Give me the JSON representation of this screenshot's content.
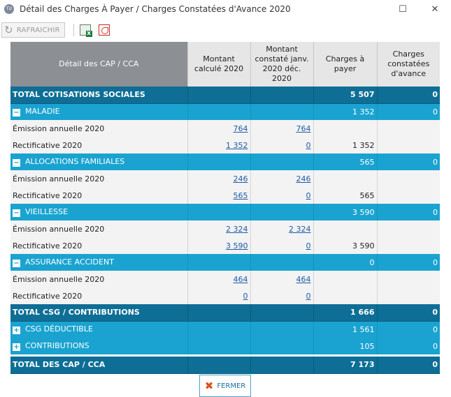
{
  "window": {
    "title": "Détail des Charges À Payer / Charges Constatées d'Avance 2020",
    "app_icon": "Tiz"
  },
  "toolbar": {
    "refresh_label": "RAFRAICHIR"
  },
  "headers": [
    "Détail des CAP / CCA",
    "Montant calculé 2020",
    "Montant constaté janv. 2020 déc. 2020",
    "Charges à payer",
    "Charges constatées d'avance"
  ],
  "rows": [
    {
      "kind": "total",
      "label": "TOTAL COTISATIONS SOCIALES",
      "calc": "",
      "const": "",
      "cap": "5 507",
      "cca": "0"
    },
    {
      "kind": "group",
      "toggle": "−",
      "label": "MALADIE",
      "calc": "",
      "const": "",
      "cap": "1 352",
      "cca": "0"
    },
    {
      "kind": "detail",
      "label": "Émission annuelle 2020",
      "calc": "764",
      "const": "764",
      "cap": "",
      "cca": ""
    },
    {
      "kind": "detail",
      "label": "Rectificative 2020",
      "calc": "1 352",
      "const": "0",
      "cap": "1 352",
      "cca": ""
    },
    {
      "kind": "group",
      "toggle": "−",
      "label": "ALLOCATIONS FAMILIALES",
      "calc": "",
      "const": "",
      "cap": "565",
      "cca": "0"
    },
    {
      "kind": "detail",
      "label": "Émission annuelle 2020",
      "calc": "246",
      "const": "246",
      "cap": "",
      "cca": ""
    },
    {
      "kind": "detail",
      "label": "Rectificative 2020",
      "calc": "565",
      "const": "0",
      "cap": "565",
      "cca": ""
    },
    {
      "kind": "group",
      "toggle": "−",
      "label": "VIEILLESSE",
      "calc": "",
      "const": "",
      "cap": "3 590",
      "cca": "0"
    },
    {
      "kind": "detail",
      "label": "Émission annuelle 2020",
      "calc": "2 324",
      "const": "2 324",
      "cap": "",
      "cca": ""
    },
    {
      "kind": "detail",
      "label": "Rectificative 2020",
      "calc": "3 590",
      "const": "0",
      "cap": "3 590",
      "cca": ""
    },
    {
      "kind": "group",
      "toggle": "−",
      "label": "ASSURANCE ACCIDENT",
      "calc": "",
      "const": "",
      "cap": "0",
      "cca": "0"
    },
    {
      "kind": "detail",
      "label": "Émission annuelle 2020",
      "calc": "464",
      "const": "464",
      "cap": "",
      "cca": ""
    },
    {
      "kind": "detail",
      "label": "Rectificative 2020",
      "calc": "0",
      "const": "0",
      "cap": "",
      "cca": ""
    },
    {
      "kind": "total",
      "label": "TOTAL CSG / CONTRIBUTIONS",
      "calc": "",
      "const": "",
      "cap": "1 666",
      "cca": "0"
    },
    {
      "kind": "group",
      "toggle": "+",
      "label": "CSG DÉDUCTIBLE",
      "calc": "",
      "const": "",
      "cap": "1 561",
      "cca": "0"
    },
    {
      "kind": "group",
      "toggle": "+",
      "label": "CONTRIBUTIONS",
      "calc": "",
      "const": "",
      "cap": "105",
      "cca": "0"
    },
    {
      "kind": "spacer"
    },
    {
      "kind": "total",
      "label": "TOTAL DES CAP / CCA",
      "calc": "",
      "const": "",
      "cap": "7 173",
      "cca": "0"
    }
  ],
  "footer": {
    "close_label": "FERMER"
  },
  "colors": {
    "total_bg": "#0e6e96",
    "group_bg": "#1aa3d0",
    "detail_bg": "#f3f3f3",
    "header_bg": "#e6e6e6",
    "header_first_bg": "#8c8f94",
    "link": "#1f5aa6"
  }
}
